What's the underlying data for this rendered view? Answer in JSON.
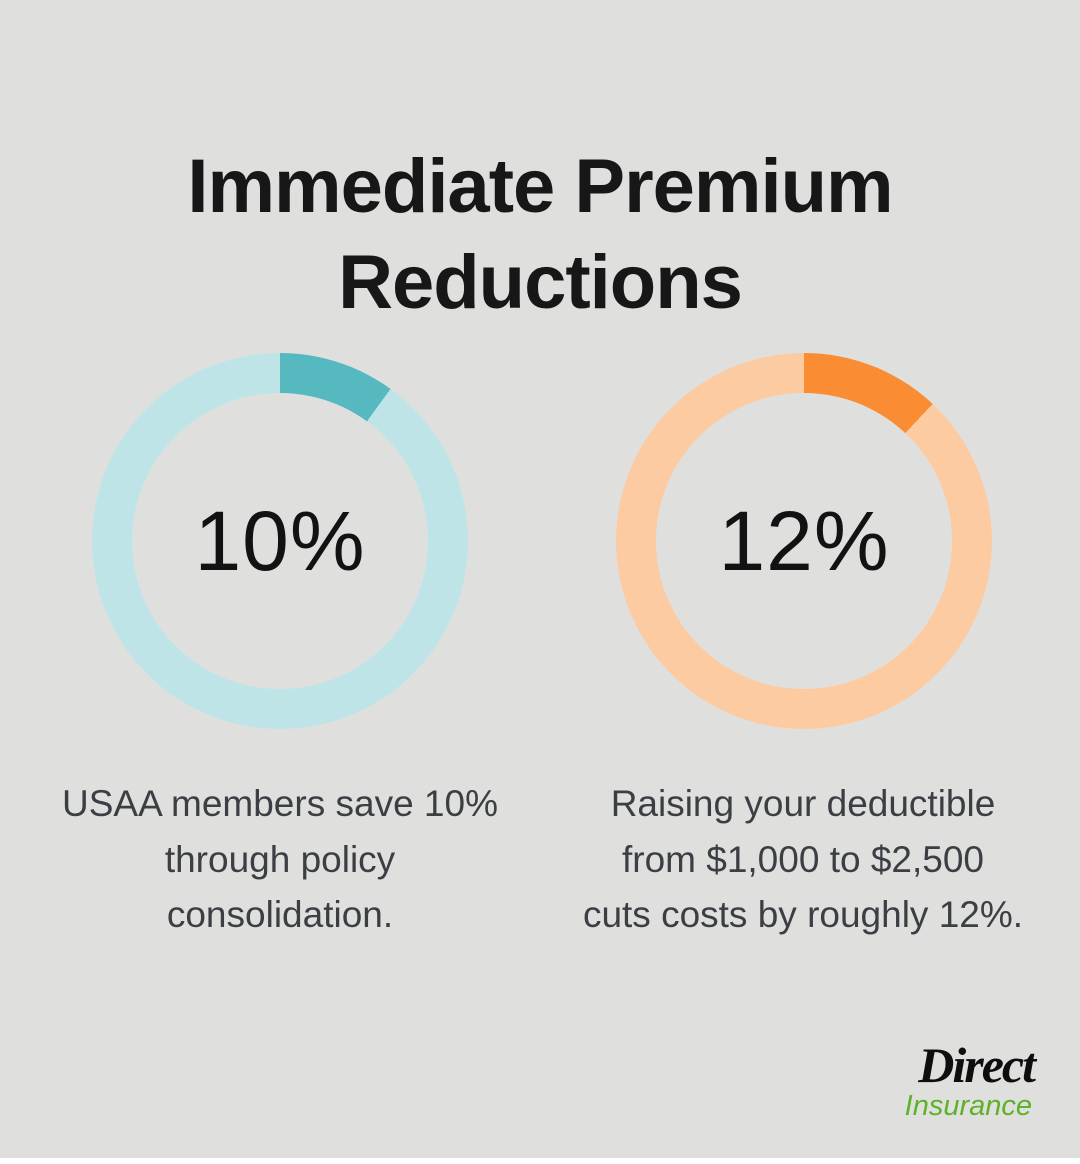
{
  "title": {
    "full": "Immediate Premium Reductions",
    "lines": [
      "Immediate Premium",
      "Reductions"
    ]
  },
  "colors": {
    "background": "#dfe0de",
    "teal_segment": "#55b9bf",
    "teal_track": "#bfe4e8",
    "orange_segment": "#fa8c33",
    "orange_track": "#fdcba2",
    "caption_text": "#3b3f44",
    "title_text": "#171717",
    "logo_green": "#5fb02a"
  },
  "chart_data": [
    {
      "type": "pie",
      "subtype": "donut",
      "value": 10,
      "max": 100,
      "label": "10%",
      "segment_color": "#55b9bf",
      "track_color": "#bfe4e8",
      "caption_lines": [
        "USAA members save 10%",
        "through policy",
        "consolidation."
      ]
    },
    {
      "type": "pie",
      "subtype": "donut",
      "value": 12,
      "max": 100,
      "label": "12%",
      "segment_color": "#fa8c33",
      "track_color": "#fdcba2",
      "caption_lines": [
        "Raising your deductible",
        "from $1,000 to $2,500",
        "cuts costs by roughly 12%."
      ]
    }
  ],
  "logo": {
    "primary": "Direct",
    "secondary": "Insurance"
  }
}
